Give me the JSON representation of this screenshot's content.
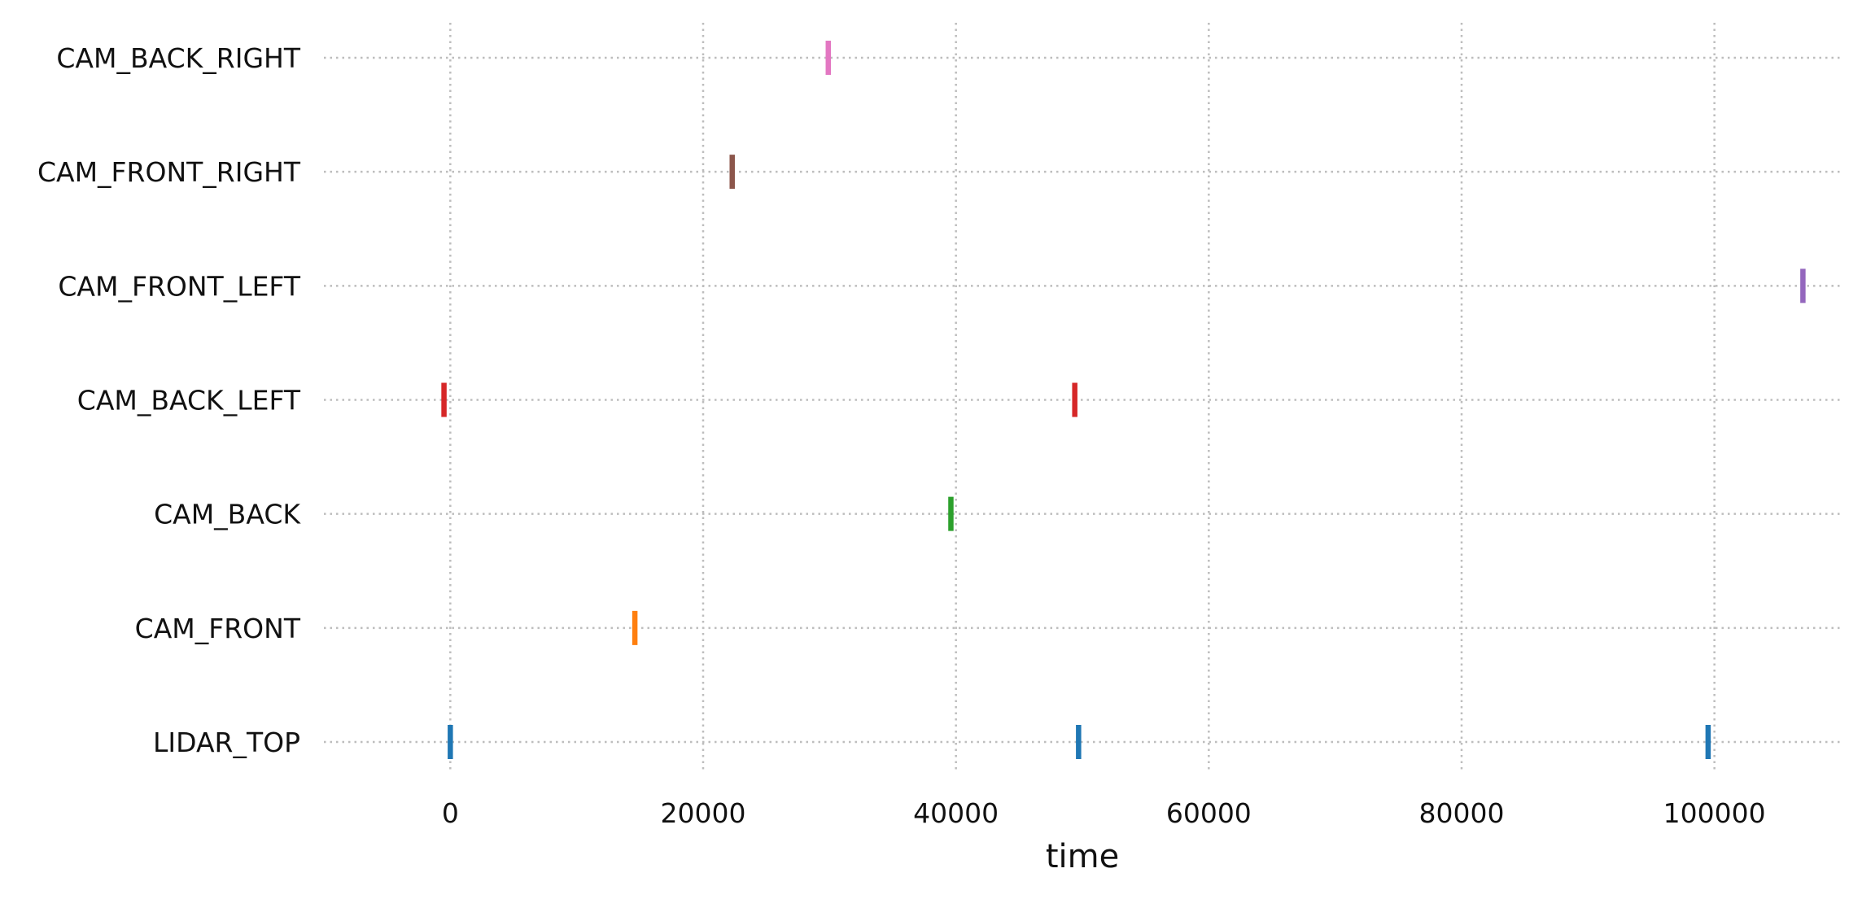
{
  "chart_data": {
    "type": "scatter",
    "title": "",
    "xlabel": "time",
    "ylabel": "",
    "xlim": [
      -10000,
      110000
    ],
    "xticks": [
      0,
      20000,
      40000,
      60000,
      80000,
      100000
    ],
    "xtick_labels": [
      "0",
      "20000",
      "40000",
      "60000",
      "80000",
      "100000"
    ],
    "grid": true,
    "legend": "none",
    "categories": [
      "LIDAR_TOP",
      "CAM_FRONT",
      "CAM_BACK",
      "CAM_BACK_LEFT",
      "CAM_FRONT_LEFT",
      "CAM_FRONT_RIGHT",
      "CAM_BACK_RIGHT"
    ],
    "series": [
      {
        "category": "LIDAR_TOP",
        "color": "#1f77b4",
        "x": [
          0,
          49700,
          99500
        ]
      },
      {
        "category": "CAM_FRONT",
        "color": "#ff7f0e",
        "x": [
          14600
        ]
      },
      {
        "category": "CAM_BACK",
        "color": "#2ca02c",
        "x": [
          39600
        ]
      },
      {
        "category": "CAM_BACK_LEFT",
        "color": "#d62728",
        "x": [
          -500,
          49400
        ]
      },
      {
        "category": "CAM_FRONT_LEFT",
        "color": "#9467bd",
        "x": [
          107000
        ]
      },
      {
        "category": "CAM_FRONT_RIGHT",
        "color": "#8c564b",
        "x": [
          22300
        ]
      },
      {
        "category": "CAM_BACK_RIGHT",
        "color": "#e377c2",
        "x": [
          29900
        ]
      }
    ]
  }
}
